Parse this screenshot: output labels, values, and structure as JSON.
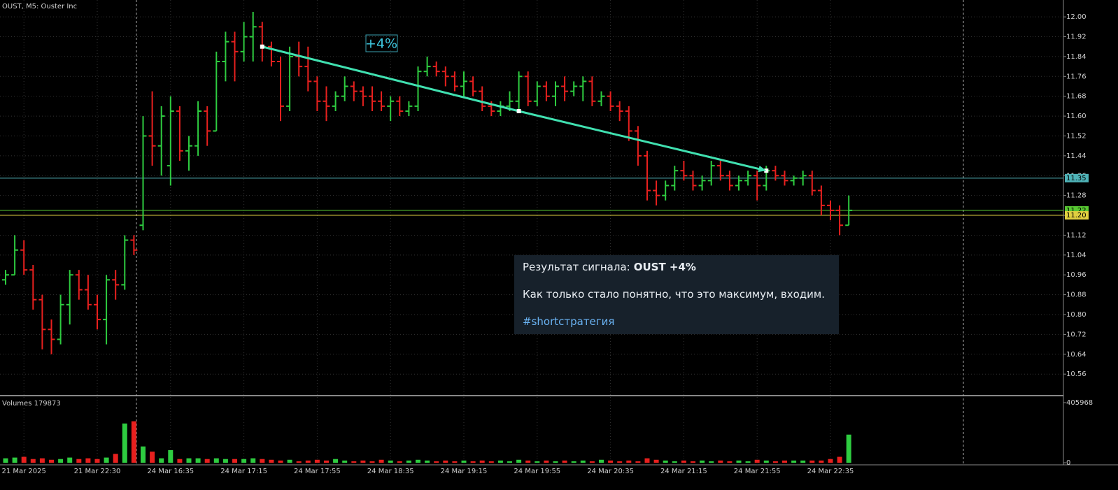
{
  "chart_data": {
    "type": "ohlc",
    "title": "OUST, M5: Ouster Inc",
    "categories": [
      null,
      null,
      "21 Mar 2025",
      null,
      null,
      null,
      null,
      null,
      null,
      null,
      "21 Mar 22:30",
      null,
      null,
      null,
      null,
      null,
      null,
      null,
      "24 Mar 16:35",
      null,
      null,
      null,
      null,
      null,
      null,
      null,
      "24 Mar 17:15",
      null,
      null,
      null,
      null,
      null,
      null,
      null,
      "24 Mar 17:55",
      null,
      null,
      null,
      null,
      null,
      null,
      null,
      "24 Mar 18:35",
      null,
      null,
      null,
      null,
      null,
      null,
      null,
      "24 Mar 19:15",
      null,
      null,
      null,
      null,
      null,
      null,
      null,
      "24 Mar 19:55",
      null,
      null,
      null,
      null,
      null,
      null,
      null,
      "24 Mar 20:35",
      null,
      null,
      null,
      null,
      null,
      null,
      null,
      "24 Mar 21:15",
      null,
      null,
      null,
      null,
      null,
      null,
      null,
      "24 Mar 21:55",
      null,
      null,
      null,
      null,
      null,
      null,
      null,
      "24 Mar 22:35",
      null,
      null
    ],
    "ohlc": [
      [
        10.94,
        10.98,
        10.92,
        10.96
      ],
      [
        10.96,
        11.12,
        10.96,
        11.06
      ],
      [
        11.06,
        11.1,
        10.96,
        10.98
      ],
      [
        10.98,
        11.0,
        10.82,
        10.86
      ],
      [
        10.86,
        10.88,
        10.66,
        10.74
      ],
      [
        10.74,
        10.78,
        10.64,
        10.7
      ],
      [
        10.7,
        10.88,
        10.68,
        10.84
      ],
      [
        10.84,
        10.98,
        10.76,
        10.96
      ],
      [
        10.96,
        10.98,
        10.86,
        10.9
      ],
      [
        10.9,
        10.96,
        10.82,
        10.84
      ],
      [
        10.84,
        10.88,
        10.74,
        10.78
      ],
      [
        10.78,
        10.96,
        10.68,
        10.94
      ],
      [
        10.94,
        10.98,
        10.86,
        10.92
      ],
      [
        10.92,
        11.12,
        10.9,
        11.1
      ],
      [
        11.1,
        11.12,
        11.04,
        11.06
      ],
      [
        11.16,
        11.6,
        11.14,
        11.52
      ],
      [
        11.52,
        11.7,
        11.4,
        11.48
      ],
      [
        11.48,
        11.64,
        11.36,
        11.6
      ],
      [
        11.4,
        11.68,
        11.32,
        11.62
      ],
      [
        11.62,
        11.64,
        11.42,
        11.46
      ],
      [
        11.46,
        11.52,
        11.38,
        11.48
      ],
      [
        11.48,
        11.66,
        11.44,
        11.62
      ],
      [
        11.62,
        11.64,
        11.48,
        11.54
      ],
      [
        11.54,
        11.86,
        11.54,
        11.82
      ],
      [
        11.82,
        11.94,
        11.74,
        11.9
      ],
      [
        11.9,
        11.94,
        11.74,
        11.86
      ],
      [
        11.86,
        11.98,
        11.82,
        11.92
      ],
      [
        11.92,
        12.02,
        11.82,
        11.96
      ],
      [
        11.96,
        11.98,
        11.82,
        11.88
      ],
      [
        11.88,
        11.9,
        11.8,
        11.82
      ],
      [
        11.82,
        11.84,
        11.58,
        11.64
      ],
      [
        11.64,
        11.88,
        11.62,
        11.84
      ],
      [
        11.84,
        11.9,
        11.76,
        11.8
      ],
      [
        11.8,
        11.88,
        11.7,
        11.74
      ],
      [
        11.74,
        11.76,
        11.62,
        11.66
      ],
      [
        11.66,
        11.72,
        11.58,
        11.64
      ],
      [
        11.64,
        11.7,
        11.62,
        11.68
      ],
      [
        11.68,
        11.76,
        11.66,
        11.72
      ],
      [
        11.72,
        11.74,
        11.66,
        11.7
      ],
      [
        11.7,
        11.72,
        11.64,
        11.68
      ],
      [
        11.68,
        11.72,
        11.62,
        11.66
      ],
      [
        11.66,
        11.7,
        11.62,
        11.64
      ],
      [
        11.64,
        11.68,
        11.58,
        11.66
      ],
      [
        11.66,
        11.68,
        11.6,
        11.62
      ],
      [
        11.62,
        11.66,
        11.6,
        11.64
      ],
      [
        11.64,
        11.8,
        11.62,
        11.78
      ],
      [
        11.78,
        11.84,
        11.76,
        11.8
      ],
      [
        11.8,
        11.82,
        11.76,
        11.78
      ],
      [
        11.78,
        11.8,
        11.72,
        11.76
      ],
      [
        11.76,
        11.78,
        11.7,
        11.72
      ],
      [
        11.72,
        11.78,
        11.68,
        11.74
      ],
      [
        11.74,
        11.76,
        11.68,
        11.7
      ],
      [
        11.7,
        11.72,
        11.62,
        11.64
      ],
      [
        11.64,
        11.66,
        11.6,
        11.62
      ],
      [
        11.62,
        11.66,
        11.6,
        11.64
      ],
      [
        11.64,
        11.7,
        11.62,
        11.66
      ],
      [
        11.66,
        11.78,
        11.62,
        11.76
      ],
      [
        11.76,
        11.78,
        11.64,
        11.66
      ],
      [
        11.66,
        11.74,
        11.64,
        11.72
      ],
      [
        11.72,
        11.74,
        11.66,
        11.68
      ],
      [
        11.68,
        11.74,
        11.64,
        11.72
      ],
      [
        11.72,
        11.76,
        11.66,
        11.7
      ],
      [
        11.7,
        11.74,
        11.68,
        11.72
      ],
      [
        11.72,
        11.76,
        11.66,
        11.74
      ],
      [
        11.74,
        11.76,
        11.64,
        11.66
      ],
      [
        11.66,
        11.7,
        11.64,
        11.68
      ],
      [
        11.68,
        11.7,
        11.62,
        11.64
      ],
      [
        11.64,
        11.66,
        11.58,
        11.62
      ],
      [
        11.62,
        11.64,
        11.5,
        11.54
      ],
      [
        11.54,
        11.56,
        11.4,
        11.44
      ],
      [
        11.44,
        11.46,
        11.26,
        11.3
      ],
      [
        11.3,
        11.34,
        11.24,
        11.28
      ],
      [
        11.28,
        11.34,
        11.26,
        11.32
      ],
      [
        11.32,
        11.4,
        11.3,
        11.38
      ],
      [
        11.38,
        11.42,
        11.34,
        11.36
      ],
      [
        11.36,
        11.38,
        11.3,
        11.32
      ],
      [
        11.32,
        11.36,
        11.3,
        11.34
      ],
      [
        11.34,
        11.42,
        11.32,
        11.4
      ],
      [
        11.4,
        11.42,
        11.34,
        11.36
      ],
      [
        11.36,
        11.38,
        11.3,
        11.32
      ],
      [
        11.32,
        11.36,
        11.3,
        11.34
      ],
      [
        11.34,
        11.38,
        11.32,
        11.36
      ],
      [
        11.36,
        11.38,
        11.26,
        11.32
      ],
      [
        11.32,
        11.4,
        11.3,
        11.38
      ],
      [
        11.38,
        11.4,
        11.34,
        11.36
      ],
      [
        11.36,
        11.38,
        11.32,
        11.34
      ],
      [
        11.34,
        11.36,
        11.32,
        11.35
      ],
      [
        11.35,
        11.38,
        11.32,
        11.36
      ],
      [
        11.36,
        11.38,
        11.28,
        11.3
      ],
      [
        11.3,
        11.32,
        11.2,
        11.24
      ],
      [
        11.24,
        11.26,
        11.18,
        11.22
      ],
      [
        11.22,
        11.24,
        11.12,
        11.16
      ],
      [
        11.16,
        11.28,
        11.16,
        11.22
      ]
    ],
    "volumes": [
      30000,
      35000,
      40000,
      25000,
      30000,
      20000,
      25000,
      35000,
      25000,
      30000,
      25000,
      35000,
      60000,
      265000,
      280000,
      110000,
      75000,
      30000,
      85000,
      25000,
      30000,
      30000,
      25000,
      30000,
      25000,
      25000,
      25000,
      30000,
      25000,
      20000,
      15000,
      20000,
      10000,
      15000,
      20000,
      15000,
      25000,
      15000,
      10000,
      15000,
      10000,
      20000,
      15000,
      10000,
      15000,
      20000,
      15000,
      10000,
      15000,
      10000,
      15000,
      10000,
      15000,
      10000,
      15000,
      10000,
      20000,
      15000,
      10000,
      15000,
      10000,
      15000,
      10000,
      15000,
      10000,
      20000,
      15000,
      10000,
      15000,
      10000,
      30000,
      20000,
      15000,
      10000,
      15000,
      10000,
      15000,
      10000,
      15000,
      10000,
      15000,
      10000,
      20000,
      15000,
      10000,
      15000,
      15000,
      15000,
      15000,
      15000,
      25000,
      40000,
      190000
    ],
    "up_color": "#2ecc40",
    "down_color": "#e8201e",
    "ylim": [
      10.476,
      12.068
    ],
    "yticks": [
      {
        "value": 12.0,
        "label": "12.00"
      },
      {
        "value": 11.92,
        "label": "11.92"
      },
      {
        "value": 11.84,
        "label": "11.84"
      },
      {
        "value": 11.76,
        "label": "11.76"
      },
      {
        "value": 11.68,
        "label": "11.68"
      },
      {
        "value": 11.6,
        "label": "11.60"
      },
      {
        "value": 11.52,
        "label": "11.52"
      },
      {
        "value": 11.44,
        "label": "11.44"
      },
      {
        "value": 11.36,
        "label": "11.36"
      },
      {
        "value": 11.28,
        "label": "11.28"
      },
      {
        "value": 11.2,
        "label": "11.20"
      },
      {
        "value": 11.12,
        "label": "11.12"
      },
      {
        "value": 11.04,
        "label": "11.04"
      },
      {
        "value": 10.96,
        "label": "10.96"
      },
      {
        "value": 10.88,
        "label": "10.88"
      },
      {
        "value": 10.8,
        "label": "10.80"
      },
      {
        "value": 10.72,
        "label": "10.72"
      },
      {
        "value": 10.64,
        "label": "10.64"
      },
      {
        "value": 10.56,
        "label": "10.56"
      }
    ],
    "grid": true,
    "levels": [
      {
        "value": 11.35,
        "label": "11.35",
        "color": "#4fb3b8"
      },
      {
        "value": 11.22,
        "label": "11.22",
        "color": "#58c832"
      },
      {
        "value": 11.2,
        "label": "11.20",
        "color": "#e0d040"
      }
    ],
    "trendline": {
      "color": "#40e0b0",
      "points": [
        {
          "index": 28,
          "value": 11.88
        },
        {
          "index": 56,
          "value": 11.62
        },
        {
          "index": 83,
          "value": 11.38
        }
      ]
    },
    "annotation": "+4%",
    "volume_label": "Volumes 179873",
    "vlim": [
      0,
      405968
    ],
    "vticks": [
      0,
      405968
    ]
  },
  "message": {
    "prefix": "Результат сигнала:",
    "bold": "OUST +4%",
    "text": "Как только стало понятно, что это максимум, входим.",
    "hashtag": "#shortстратегия"
  }
}
